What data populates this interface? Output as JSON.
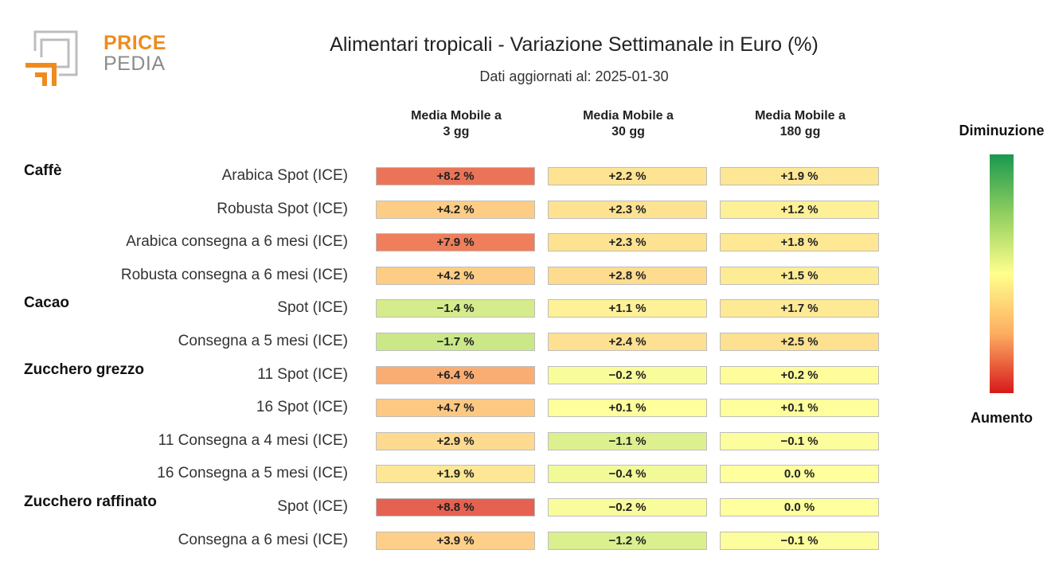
{
  "logo": {
    "line1": "PRICE",
    "line2": "PEDIA"
  },
  "header": {
    "title": "Alimentari tropicali - Variazione Settimanale in Euro (%)",
    "subtitle": "Dati aggiornati al: 2025-01-30"
  },
  "chart_data": {
    "type": "heatmap",
    "title": "Alimentari tropicali - Variazione Settimanale in Euro (%)",
    "subtitle": "Dati aggiornati al: 2025-01-30",
    "columns": [
      {
        "line1": "Media Mobile a",
        "line2": "3 gg"
      },
      {
        "line1": "Media Mobile a",
        "line2": "30 gg"
      },
      {
        "line1": "Media Mobile a",
        "line2": "180 gg"
      }
    ],
    "groups": [
      {
        "name": "Caffè",
        "first_row": 0
      },
      {
        "name": "Cacao",
        "first_row": 4
      },
      {
        "name": "Zucchero grezzo",
        "first_row": 6
      },
      {
        "name": "Zucchero raffinato",
        "first_row": 10
      }
    ],
    "rows": [
      {
        "label": "Arabica Spot (ICE)",
        "values": [
          8.2,
          2.2,
          1.9
        ]
      },
      {
        "label": "Robusta Spot (ICE)",
        "values": [
          4.2,
          2.3,
          1.2
        ]
      },
      {
        "label": "Arabica consegna a 6 mesi (ICE)",
        "values": [
          7.9,
          2.3,
          1.8
        ]
      },
      {
        "label": "Robusta consegna a 6 mesi (ICE)",
        "values": [
          4.2,
          2.8,
          1.5
        ]
      },
      {
        "label": "Spot (ICE)",
        "values": [
          -1.4,
          1.1,
          1.7
        ]
      },
      {
        "label": "Consegna a 5 mesi (ICE)",
        "values": [
          -1.7,
          2.4,
          2.5
        ]
      },
      {
        "label": "11 Spot (ICE)",
        "values": [
          6.4,
          -0.2,
          0.2
        ]
      },
      {
        "label": "16 Spot (ICE)",
        "values": [
          4.7,
          0.1,
          0.1
        ]
      },
      {
        "label": "11 Consegna a 4 mesi (ICE)",
        "values": [
          2.9,
          -1.1,
          -0.1
        ]
      },
      {
        "label": "16 Consegna a 5 mesi (ICE)",
        "values": [
          1.9,
          -0.4,
          0.0
        ]
      },
      {
        "label": "Spot (ICE)",
        "values": [
          8.8,
          -0.2,
          0.0
        ]
      },
      {
        "label": "Consegna a 6 mesi (ICE)",
        "values": [
          3.9,
          -1.2,
          -0.1
        ]
      }
    ],
    "legend": {
      "top_label": "Diminuzione",
      "bottom_label": "Aumento",
      "colors": [
        "#1a9850",
        "#91cf60",
        "#ffff8c",
        "#fdae61",
        "#d7191c"
      ]
    }
  }
}
